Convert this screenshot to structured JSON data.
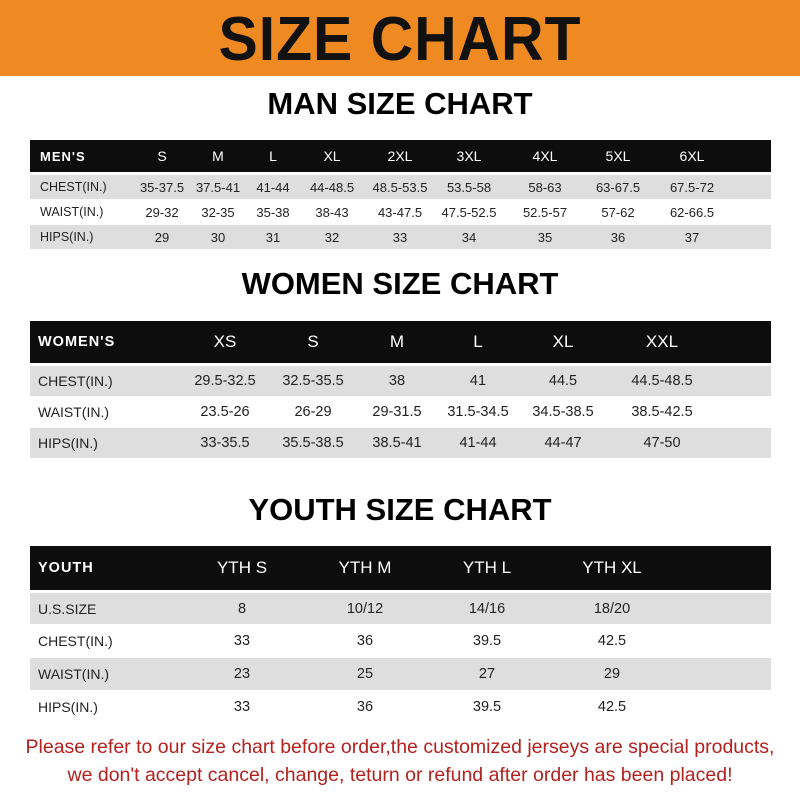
{
  "banner": {
    "title": "SIZE CHART",
    "color": "#ef8a22"
  },
  "men": {
    "title": "MAN SIZE CHART",
    "header": [
      "MEN'S",
      "S",
      "M",
      "L",
      "XL",
      "2XL",
      "3XL",
      "4XL",
      "5XL",
      "6XL"
    ],
    "rows": [
      [
        "CHEST(IN.)",
        "35-37.5",
        "37.5-41",
        "41-44",
        "44-48.5",
        "48.5-53.5",
        "53.5-58",
        "58-63",
        "63-67.5",
        "67.5-72"
      ],
      [
        "WAIST(IN.)",
        "29-32",
        "32-35",
        "35-38",
        "38-43",
        "43-47.5",
        "47.5-52.5",
        "52.5-57",
        "57-62",
        "62-66.5"
      ],
      [
        "HIPS(IN.)",
        "29",
        "30",
        "31",
        "32",
        "33",
        "34",
        "35",
        "36",
        "37"
      ]
    ]
  },
  "women": {
    "title": "WOMEN SIZE CHART",
    "header": [
      "WOMEN'S",
      "XS",
      "S",
      "M",
      "L",
      "XL",
      "XXL"
    ],
    "rows": [
      [
        "CHEST(IN.)",
        "29.5-32.5",
        "32.5-35.5",
        "38",
        "41",
        "44.5",
        "44.5-48.5"
      ],
      [
        "WAIST(IN.)",
        "23.5-26",
        "26-29",
        "29-31.5",
        "31.5-34.5",
        "34.5-38.5",
        "38.5-42.5"
      ],
      [
        "HIPS(IN.)",
        "33-35.5",
        "35.5-38.5",
        "38.5-41",
        "41-44",
        "44-47",
        "47-50"
      ]
    ]
  },
  "youth": {
    "title": "YOUTH SIZE CHART",
    "header": [
      "YOUTH",
      "YTH S",
      "YTH M",
      "YTH L",
      "YTH XL"
    ],
    "rows": [
      [
        "U.S.SIZE",
        "8",
        "10/12",
        "14/16",
        "18/20"
      ],
      [
        "CHEST(IN.)",
        "33",
        "36",
        "39.5",
        "42.5"
      ],
      [
        "WAIST(IN.)",
        "23",
        "25",
        "27",
        "29"
      ],
      [
        "HIPS(IN.)",
        "33",
        "36",
        "39.5",
        "42.5"
      ]
    ]
  },
  "note": {
    "line1": "Please refer to our size chart before order,the customized jerseys are special products,",
    "line2": "we don't accept cancel, change, teturn or refund after order has been placed!",
    "color": "#b3221f"
  }
}
